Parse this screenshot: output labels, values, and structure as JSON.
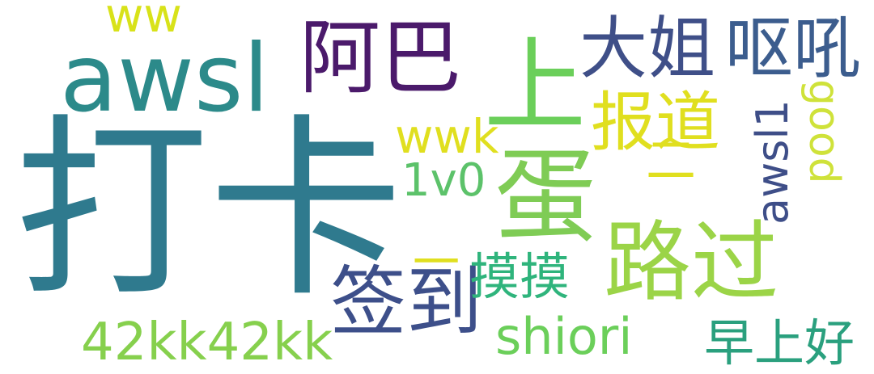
{
  "words": [
    {
      "text": "打卡",
      "color": "#2f7a8e"
    },
    {
      "text": "awsl",
      "color": "#2c8a8a"
    },
    {
      "text": "阿巴",
      "color": "#4b1a6b"
    },
    {
      "text": "上",
      "color": "#6bcf5a"
    },
    {
      "text": "大姐",
      "color": "#3f4f88"
    },
    {
      "text": "呕吼",
      "color": "#3c5d8e"
    },
    {
      "text": "ww",
      "color": "#d8e219"
    },
    {
      "text": "报道",
      "color": "#e0df1f"
    },
    {
      "text": "wwk",
      "color": "#e0df1f"
    },
    {
      "text": "蛋",
      "color": "#7fcc55"
    },
    {
      "text": "二",
      "color": "#e0df1f"
    },
    {
      "text": "awsl1",
      "color": "#3e4e88"
    },
    {
      "text": "good",
      "color": "#cfe23a"
    },
    {
      "text": "1v0",
      "color": "#5cc26a"
    },
    {
      "text": "路过",
      "color": "#9bd447"
    },
    {
      "text": "一",
      "color": "#e0df1f"
    },
    {
      "text": "签到",
      "color": "#3d4f8a"
    },
    {
      "text": "摸摸",
      "color": "#2fb47c"
    },
    {
      "text": "42kk42kk",
      "color": "#86d04d"
    },
    {
      "text": "shiori",
      "color": "#6bcf5a"
    },
    {
      "text": "早上好",
      "color": "#2aa07e"
    }
  ]
}
